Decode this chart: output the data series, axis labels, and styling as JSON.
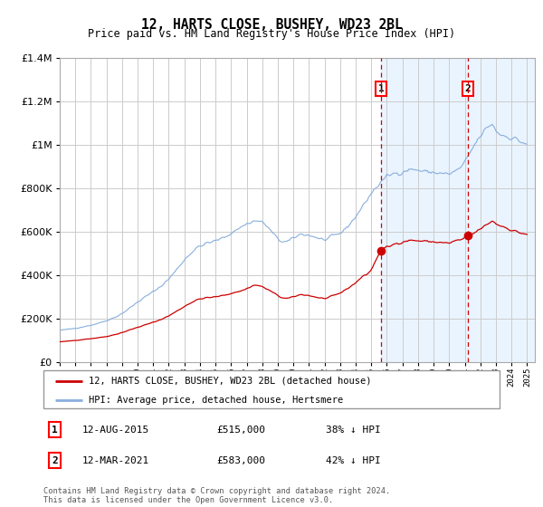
{
  "title": "12, HARTS CLOSE, BUSHEY, WD23 2BL",
  "subtitle": "Price paid vs. HM Land Registry's House Price Index (HPI)",
  "ylim": [
    0,
    1400000
  ],
  "xlim": [
    1995.0,
    2025.5
  ],
  "grid_color": "#cccccc",
  "legend_label_red": "12, HARTS CLOSE, BUSHEY, WD23 2BL (detached house)",
  "legend_label_blue": "HPI: Average price, detached house, Hertsmere",
  "sale1_date": "12-AUG-2015",
  "sale1_price": "£515,000",
  "sale1_note": "38% ↓ HPI",
  "sale1_year": 2015.617,
  "sale1_value": 515000,
  "sale2_date": "12-MAR-2021",
  "sale2_price": "£583,000",
  "sale2_note": "42% ↓ HPI",
  "sale2_year": 2021.192,
  "sale2_value": 583000,
  "footer": "Contains HM Land Registry data © Crown copyright and database right 2024.\nThis data is licensed under the Open Government Licence v3.0.",
  "red_color": "#cc0000",
  "blue_color": "#88aedd",
  "shade_color": "#ddeeff",
  "shade_alpha": 0.6
}
